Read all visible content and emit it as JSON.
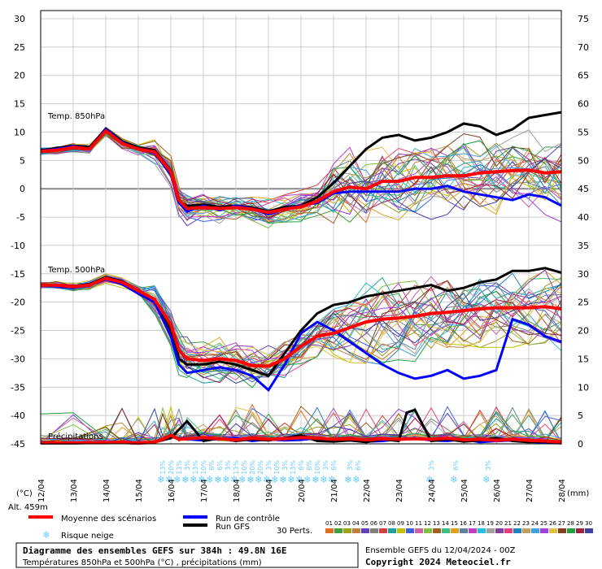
{
  "chart_data": {
    "type": "line",
    "title": "Diagramme des ensembles GEFS sur 384h : 49.8N 16E",
    "subtitle": "Températures 850hPa et 500hPa (°C) , précipitations (mm)",
    "run_label": "Ensemble GEFS du 12/04/2024 - 00Z",
    "copyright": "Copyright 2024 Meteociel.fr",
    "left_unit": "(°C)",
    "right_unit": "(mm)",
    "altitude": "Alt. 459m",
    "panel_labels": {
      "t850": "Temp. 850hPa",
      "t500": "Temp. 500hPa",
      "precip": "Précipitations"
    },
    "ylim_left": [
      -45,
      30
    ],
    "yticks_left": [
      30,
      25,
      20,
      15,
      10,
      5,
      0,
      -5,
      -10,
      -15,
      -20,
      -25,
      -30,
      -35,
      -40,
      -45
    ],
    "yticks_right": [
      75,
      70,
      65,
      60,
      55,
      50,
      45,
      40,
      35,
      30,
      25,
      20,
      15,
      10,
      5,
      0
    ],
    "x_dates": [
      "13/04",
      "14/04",
      "15/04",
      "16/04",
      "17/04",
      "18/04",
      "19/04",
      "20/04",
      "21/04",
      "22/04",
      "23/04",
      "24/04",
      "25/04",
      "26/04",
      "27/04",
      "28/04"
    ],
    "x_first_date": "12/04",
    "legend": {
      "mean": "Moyenne des scénarios",
      "control": "Run de contrôle",
      "gfs": "Run GFS",
      "snow": "Risque neige",
      "perts": "30 Perts.",
      "pert_numbers": [
        "01",
        "02",
        "03",
        "04",
        "05",
        "06",
        "07",
        "08",
        "09",
        "10",
        "11",
        "12",
        "13",
        "14",
        "15",
        "16",
        "17",
        "18",
        "19",
        "20",
        "21",
        "22",
        "23",
        "24",
        "25",
        "26",
        "27",
        "28",
        "29",
        "30"
      ],
      "pert_colors": [
        "#e07020",
        "#40a040",
        "#a0a020",
        "#c08040",
        "#6040c0",
        "#808080",
        "#d04040",
        "#20a0a0",
        "#c0c000",
        "#4060e0",
        "#d060a0",
        "#80c040",
        "#a06020",
        "#40c080",
        "#e0a020",
        "#6080a0",
        "#c040c0",
        "#20c0e0",
        "#a0a0a0",
        "#8040a0",
        "#e04080",
        "#2080c0",
        "#c0a060",
        "#40a0e0",
        "#a040e0",
        "#e0c040",
        "#804020",
        "#20a040",
        "#a02040",
        "#4040a0"
      ]
    },
    "colors": {
      "mean": "#ff0000",
      "control": "#0000ff",
      "gfs": "#000000",
      "snow": "#66ccff"
    },
    "series_t850": [
      {
        "name": "Moyenne des scénarios",
        "x": [
          0,
          0.5,
          1,
          1.5,
          2,
          2.5,
          3,
          3.5,
          4,
          4.25,
          4.5,
          5,
          5.5,
          6,
          6.5,
          7,
          7.5,
          8,
          8.5,
          9,
          9.5,
          10,
          10.5,
          11,
          11.5,
          12,
          12.5,
          13,
          13.5,
          14,
          14.5,
          15,
          15.5,
          16
        ],
        "values": [
          6.6,
          6.8,
          7.3,
          7.0,
          10.2,
          8.0,
          7.0,
          6.5,
          3.0,
          -2.0,
          -3.5,
          -3.3,
          -3.5,
          -3.3,
          -3.6,
          -4.2,
          -3.6,
          -3.2,
          -2.2,
          -0.5,
          0.3,
          0.0,
          1.3,
          1.3,
          2.0,
          2.0,
          2.3,
          2.3,
          2.8,
          3.0,
          3.2,
          3.3,
          2.8,
          3.0
        ]
      },
      {
        "name": "Run de contrôle",
        "x": [
          0,
          0.5,
          1,
          1.5,
          2,
          2.5,
          3,
          3.5,
          4,
          4.25,
          4.5,
          5,
          5.5,
          6,
          6.5,
          7,
          7.5,
          8,
          8.5,
          9,
          9.5,
          10,
          10.5,
          11,
          11.5,
          12,
          12.5,
          13,
          13.5,
          14,
          14.5,
          15,
          15.5,
          16
        ],
        "values": [
          6.7,
          7.0,
          7.5,
          7.0,
          10.5,
          8.2,
          7.0,
          6.3,
          2.5,
          -2.5,
          -4.0,
          -3.0,
          -3.8,
          -3.0,
          -3.5,
          -4.5,
          -3.5,
          -3.0,
          -2.5,
          -0.8,
          -0.5,
          -0.5,
          -0.5,
          -0.5,
          0.0,
          0.0,
          0.5,
          -0.5,
          -1.0,
          -1.5,
          -2.0,
          -1.0,
          -1.5,
          -3.0
        ]
      },
      {
        "name": "Run GFS",
        "x": [
          0,
          0.5,
          1,
          1.5,
          2,
          2.5,
          3,
          3.5,
          4,
          4.25,
          4.5,
          5,
          5.5,
          6,
          6.5,
          7,
          7.5,
          8,
          8.5,
          9,
          9.5,
          10,
          10.5,
          11,
          11.5,
          12,
          12.5,
          13,
          13.5,
          14,
          14.5,
          15,
          15.5,
          16
        ],
        "values": [
          6.8,
          7.2,
          7.6,
          7.3,
          10.6,
          8.4,
          7.3,
          6.8,
          3.2,
          -2.2,
          -3.0,
          -2.8,
          -3.2,
          -3.0,
          -3.3,
          -4.0,
          -3.2,
          -3.0,
          -1.5,
          1.0,
          4.0,
          7.0,
          9.0,
          9.5,
          8.5,
          9.0,
          10.0,
          11.5,
          11.0,
          9.5,
          10.5,
          12.5,
          13.0,
          13.5
        ]
      }
    ],
    "series_t500": [
      {
        "name": "Moyenne des scénarios",
        "x": [
          0,
          0.5,
          1,
          1.5,
          2,
          2.5,
          3,
          3.5,
          4,
          4.25,
          4.5,
          5,
          5.5,
          6,
          6.5,
          7,
          7.5,
          8,
          8.5,
          9,
          9.5,
          10,
          10.5,
          11,
          11.5,
          12,
          12.5,
          13,
          13.5,
          14,
          14.5,
          15,
          15.5,
          16
        ],
        "values": [
          -17.0,
          -17.0,
          -17.3,
          -17.0,
          -15.8,
          -16.5,
          -18.0,
          -19.5,
          -24.0,
          -28.5,
          -30.0,
          -30.3,
          -30.0,
          -30.3,
          -31.2,
          -31.3,
          -30.0,
          -27.8,
          -26.0,
          -25.5,
          -24.5,
          -23.5,
          -23.0,
          -22.8,
          -22.5,
          -22.0,
          -21.8,
          -21.5,
          -21.2,
          -21.0,
          -21.0,
          -21.0,
          -20.8,
          -21.2
        ]
      },
      {
        "name": "Run de contrôle",
        "x": [
          0,
          0.5,
          1,
          1.5,
          2,
          2.5,
          3,
          3.5,
          4,
          4.25,
          4.5,
          5,
          5.5,
          6,
          6.5,
          7,
          7.5,
          8,
          8.5,
          9,
          9.5,
          10,
          10.5,
          11,
          11.5,
          12,
          12.5,
          13,
          13.5,
          14,
          14.5,
          15,
          15.5,
          16
        ],
        "values": [
          -17.0,
          -17.2,
          -17.5,
          -17.0,
          -16.0,
          -16.8,
          -18.5,
          -20.0,
          -26.0,
          -31.0,
          -32.5,
          -32.0,
          -31.5,
          -32.0,
          -33.0,
          -35.5,
          -31.0,
          -25.5,
          -23.5,
          -25.0,
          -27.0,
          -29.0,
          -31.0,
          -32.5,
          -33.5,
          -33.0,
          -32.0,
          -33.5,
          -33.0,
          -32.0,
          -23.0,
          -24.0,
          -26.0,
          -27.0
        ]
      },
      {
        "name": "Run GFS",
        "x": [
          0,
          0.5,
          1,
          1.5,
          2,
          2.5,
          3,
          3.5,
          4,
          4.25,
          4.5,
          5,
          5.5,
          6,
          6.5,
          7,
          7.5,
          8,
          8.5,
          9,
          9.5,
          10,
          10.5,
          11,
          11.5,
          12,
          12.5,
          13,
          13.5,
          14,
          14.5,
          15,
          15.5,
          16
        ],
        "values": [
          -17.0,
          -17.0,
          -17.2,
          -16.8,
          -15.6,
          -16.3,
          -18.0,
          -19.8,
          -25.0,
          -30.0,
          -31.0,
          -31.0,
          -30.5,
          -31.0,
          -32.0,
          -33.0,
          -29.0,
          -25.0,
          -22.0,
          -20.5,
          -20.0,
          -19.0,
          -18.5,
          -18.0,
          -17.5,
          -17.0,
          -18.0,
          -17.5,
          -16.5,
          -16.0,
          -14.5,
          -14.5,
          -14.0,
          -14.8
        ]
      }
    ],
    "series_precip": [
      {
        "name": "Moyenne des scénarios",
        "x": [
          0,
          1,
          2,
          2.5,
          3,
          3.5,
          3.75,
          4,
          4.25,
          4.5,
          5,
          5.5,
          6,
          6.5,
          7,
          7.5,
          8,
          8.5,
          9,
          9.5,
          10,
          10.5,
          11,
          11.5,
          12,
          12.5,
          13,
          13.5,
          14,
          14.5,
          15,
          15.5,
          16
        ],
        "values": [
          0.2,
          0.2,
          0.2,
          0.3,
          0.1,
          0.3,
          0.8,
          1.5,
          0.8,
          0.9,
          1.1,
          0.9,
          0.7,
          1.0,
          0.8,
          0.9,
          1.1,
          1.0,
          0.8,
          0.9,
          0.7,
          0.9,
          0.8,
          0.9,
          0.8,
          1.0,
          0.7,
          0.8,
          0.6,
          0.8,
          0.6,
          0.5,
          0.3
        ]
      },
      {
        "name": "Run GFS",
        "x": [
          0,
          1,
          2,
          3,
          3.5,
          4,
          4.5,
          5,
          5.5,
          6,
          6.5,
          7,
          7.5,
          8,
          8.5,
          9,
          9.5,
          10,
          10.5,
          11,
          11.25,
          11.5,
          12,
          12.5,
          13,
          13.5,
          14,
          14.5,
          15,
          15.5,
          16
        ],
        "values": [
          0.1,
          0.1,
          0.2,
          0.1,
          0.3,
          1.0,
          4.0,
          0.5,
          1.0,
          0.5,
          0.8,
          0.6,
          1.0,
          1.5,
          0.5,
          0.4,
          0.6,
          0.3,
          0.8,
          0.5,
          5.5,
          6.0,
          0.5,
          0.8,
          0.4,
          0.6,
          1.0,
          0.5,
          0.3,
          0.4,
          0.1
        ]
      },
      {
        "name": "Run de contrôle",
        "x": [
          0,
          1,
          2,
          3,
          3.5,
          4,
          4.5,
          5,
          5.5,
          6,
          6.5,
          7,
          7.5,
          8,
          8.5,
          9,
          9.5,
          10,
          10.5,
          11,
          11.5,
          12,
          12.5,
          13,
          13.5,
          14,
          14.5,
          15,
          15.5,
          16
        ],
        "values": [
          0.1,
          0.1,
          0.2,
          0.1,
          0.4,
          1.2,
          0.8,
          0.6,
          0.9,
          1.0,
          0.5,
          0.8,
          0.6,
          0.7,
          1.0,
          0.5,
          0.6,
          0.4,
          0.5,
          0.8,
          1.0,
          0.6,
          0.5,
          0.8,
          0.3,
          0.5,
          0.6,
          0.4,
          0.2,
          0.1
        ]
      }
    ],
    "snow_labels": [
      {
        "x": 3.75,
        "text": "13%"
      },
      {
        "x": 4.0,
        "text": "20%"
      },
      {
        "x": 4.25,
        "text": "13%"
      },
      {
        "x": 4.5,
        "text": "3%"
      },
      {
        "x": 4.75,
        "text": "13%"
      },
      {
        "x": 5.0,
        "text": "10%"
      },
      {
        "x": 5.25,
        "text": "6%"
      },
      {
        "x": 5.5,
        "text": "6%"
      },
      {
        "x": 5.75,
        "text": "3%"
      },
      {
        "x": 6.0,
        "text": "13%"
      },
      {
        "x": 6.25,
        "text": "10%"
      },
      {
        "x": 6.5,
        "text": "20%"
      },
      {
        "x": 6.75,
        "text": "20%"
      },
      {
        "x": 7.0,
        "text": "3%"
      },
      {
        "x": 7.25,
        "text": "10%"
      },
      {
        "x": 7.5,
        "text": "3%"
      },
      {
        "x": 7.75,
        "text": "13%"
      },
      {
        "x": 8.0,
        "text": "6%"
      },
      {
        "x": 8.25,
        "text": "6%"
      },
      {
        "x": 8.5,
        "text": "10%"
      },
      {
        "x": 8.75,
        "text": "3%"
      },
      {
        "x": 9.0,
        "text": "6%"
      },
      {
        "x": 9.5,
        "text": "3%"
      },
      {
        "x": 9.75,
        "text": "6%"
      },
      {
        "x": 12.0,
        "text": "3%"
      },
      {
        "x": 12.75,
        "text": "6%"
      },
      {
        "x": 13.75,
        "text": "3%"
      }
    ]
  }
}
